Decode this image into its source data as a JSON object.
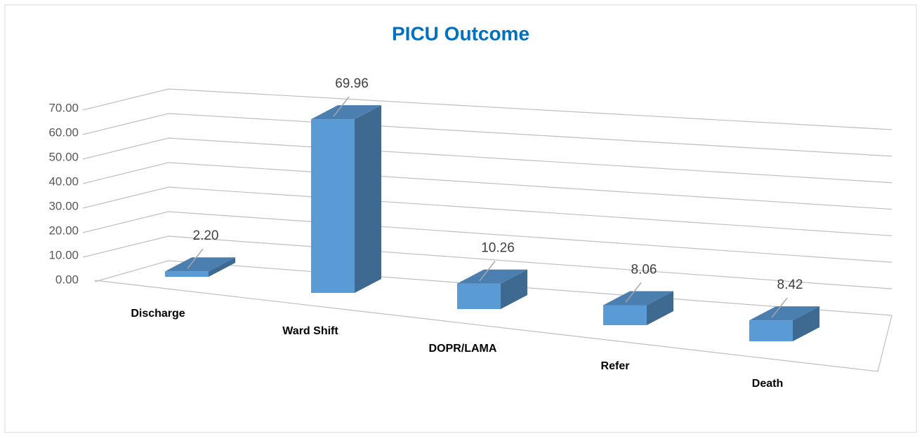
{
  "chart_data": {
    "type": "bar3d",
    "title": "PICU Outcome",
    "categories": [
      "Discharge",
      "Ward Shift",
      "DOPR/LAMA",
      "Refer",
      "Death"
    ],
    "values": [
      2.2,
      69.96,
      10.26,
      8.06,
      8.42
    ],
    "value_labels": [
      "2.20",
      "69.96",
      "10.26",
      "8.06",
      "8.42"
    ],
    "color": "#5b9bd5",
    "ylim": [
      0,
      70
    ],
    "yticks": [
      {
        "value": 0,
        "label": "0.00"
      },
      {
        "value": 10,
        "label": "10.00"
      },
      {
        "value": 20,
        "label": "20.00"
      },
      {
        "value": 30,
        "label": "30.00"
      },
      {
        "value": 40,
        "label": "40.00"
      },
      {
        "value": 50,
        "label": "50.00"
      },
      {
        "value": 60,
        "label": "60.00"
      },
      {
        "value": 70,
        "label": "70.00"
      }
    ],
    "grid": true
  }
}
